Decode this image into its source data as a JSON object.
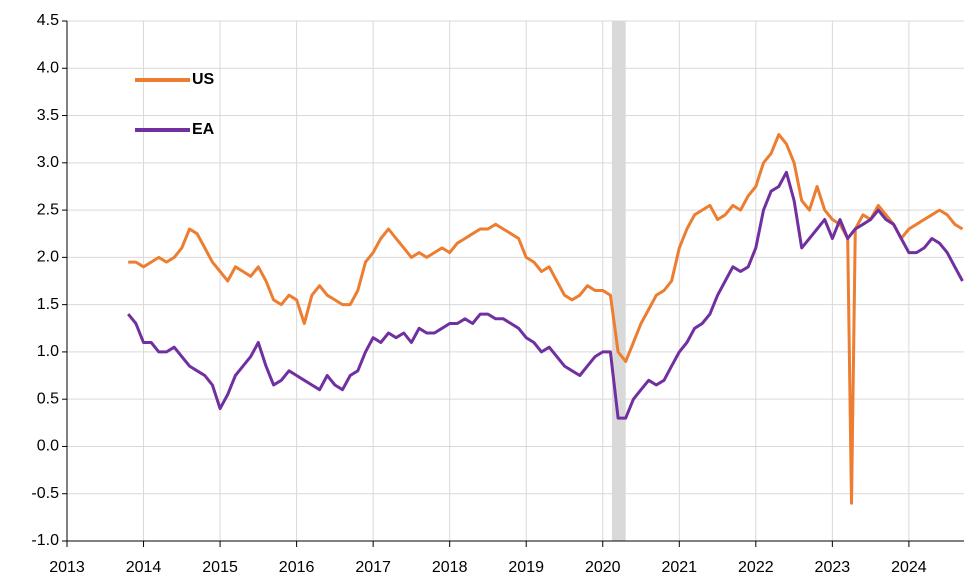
{
  "chart_data": {
    "type": "line",
    "x": [
      2013.8,
      2013.9,
      2014.0,
      2014.1,
      2014.2,
      2014.3,
      2014.4,
      2014.5,
      2014.6,
      2014.7,
      2014.8,
      2014.9,
      2015.0,
      2015.1,
      2015.2,
      2015.3,
      2015.4,
      2015.5,
      2015.6,
      2015.7,
      2015.8,
      2015.9,
      2016.0,
      2016.1,
      2016.2,
      2016.3,
      2016.4,
      2016.5,
      2016.6,
      2016.7,
      2016.8,
      2016.9,
      2017.0,
      2017.1,
      2017.2,
      2017.3,
      2017.4,
      2017.5,
      2017.6,
      2017.7,
      2017.8,
      2017.9,
      2018.0,
      2018.1,
      2018.2,
      2018.3,
      2018.4,
      2018.5,
      2018.6,
      2018.7,
      2018.8,
      2018.9,
      2019.0,
      2019.1,
      2019.2,
      2019.3,
      2019.4,
      2019.5,
      2019.6,
      2019.7,
      2019.8,
      2019.9,
      2020.0,
      2020.1,
      2020.2,
      2020.3,
      2020.4,
      2020.5,
      2020.6,
      2020.7,
      2020.8,
      2020.9,
      2021.0,
      2021.1,
      2021.2,
      2021.3,
      2021.4,
      2021.5,
      2021.6,
      2021.7,
      2021.8,
      2021.9,
      2022.0,
      2022.1,
      2022.2,
      2022.3,
      2022.4,
      2022.5,
      2022.6,
      2022.7,
      2022.8,
      2022.9,
      2023.0,
      2023.1,
      2023.2,
      2023.25,
      2023.3,
      2023.4,
      2023.5,
      2023.6,
      2023.7,
      2023.8,
      2023.9,
      2024.0,
      2024.1,
      2024.2,
      2024.3,
      2024.4,
      2024.5,
      2024.6,
      2024.7
    ],
    "series": [
      {
        "name": "US",
        "color": "#ed7d31",
        "values": [
          1.95,
          1.95,
          1.9,
          1.95,
          2.0,
          1.95,
          2.0,
          2.1,
          2.3,
          2.25,
          2.1,
          1.95,
          1.85,
          1.75,
          1.9,
          1.85,
          1.8,
          1.9,
          1.75,
          1.55,
          1.5,
          1.6,
          1.55,
          1.3,
          1.6,
          1.7,
          1.6,
          1.55,
          1.5,
          1.5,
          1.65,
          1.95,
          2.05,
          2.2,
          2.3,
          2.2,
          2.1,
          2.0,
          2.05,
          2.0,
          2.05,
          2.1,
          2.05,
          2.15,
          2.2,
          2.25,
          2.3,
          2.3,
          2.35,
          2.3,
          2.25,
          2.2,
          2.0,
          1.95,
          1.85,
          1.9,
          1.75,
          1.6,
          1.55,
          1.6,
          1.7,
          1.65,
          1.65,
          1.6,
          1.0,
          0.9,
          1.1,
          1.3,
          1.45,
          1.6,
          1.65,
          1.75,
          2.1,
          2.3,
          2.45,
          2.5,
          2.55,
          2.4,
          2.45,
          2.55,
          2.5,
          2.65,
          2.75,
          3.0,
          3.1,
          3.3,
          3.2,
          3.0,
          2.6,
          2.5,
          2.75,
          2.5,
          2.4,
          2.35,
          2.2,
          -0.6,
          2.3,
          2.45,
          2.4,
          2.55,
          2.45,
          2.35,
          2.2,
          2.3,
          2.35,
          2.4,
          2.45,
          2.5,
          2.45,
          2.35,
          2.3
        ]
      },
      {
        "name": "EA",
        "color": "#7030a0",
        "values": [
          1.4,
          1.3,
          1.1,
          1.1,
          1.0,
          1.0,
          1.05,
          0.95,
          0.85,
          0.8,
          0.75,
          0.65,
          0.4,
          0.55,
          0.75,
          0.85,
          0.95,
          1.1,
          0.85,
          0.65,
          0.7,
          0.8,
          0.75,
          0.7,
          0.65,
          0.6,
          0.75,
          0.65,
          0.6,
          0.75,
          0.8,
          1.0,
          1.15,
          1.1,
          1.2,
          1.15,
          1.2,
          1.1,
          1.25,
          1.2,
          1.2,
          1.25,
          1.3,
          1.3,
          1.35,
          1.3,
          1.4,
          1.4,
          1.35,
          1.35,
          1.3,
          1.25,
          1.15,
          1.1,
          1.0,
          1.05,
          0.95,
          0.85,
          0.8,
          0.75,
          0.85,
          0.95,
          1.0,
          1.0,
          0.3,
          0.3,
          0.5,
          0.6,
          0.7,
          0.65,
          0.7,
          0.85,
          1.0,
          1.1,
          1.25,
          1.3,
          1.4,
          1.6,
          1.75,
          1.9,
          1.85,
          1.9,
          2.1,
          2.5,
          2.7,
          2.75,
          2.9,
          2.6,
          2.1,
          2.2,
          2.3,
          2.4,
          2.2,
          2.4,
          2.2,
          2.25,
          2.3,
          2.35,
          2.4,
          2.5,
          2.4,
          2.35,
          2.2,
          2.05,
          2.05,
          2.1,
          2.2,
          2.15,
          2.05,
          1.9,
          1.75
        ]
      }
    ],
    "xlim": [
      2013,
      2024.72
    ],
    "xticks": [
      2013,
      2014,
      2015,
      2016,
      2017,
      2018,
      2019,
      2020,
      2021,
      2022,
      2023,
      2024
    ],
    "ylim": [
      -1,
      4.5
    ],
    "yticks": [
      {
        "value": -1,
        "label": "-1.0"
      },
      -0.5,
      {
        "value": 0,
        "label": "0.0"
      },
      0.5,
      {
        "value": 1,
        "label": "1.0"
      },
      1.5,
      {
        "value": 2,
        "label": "2.0"
      },
      2.5,
      {
        "value": 3,
        "label": "3.0"
      },
      3.5,
      {
        "value": 4,
        "label": "4.0"
      },
      4.5
    ],
    "shade": [
      2020.12,
      2020.3
    ],
    "grid": true,
    "legend": "upper left"
  }
}
